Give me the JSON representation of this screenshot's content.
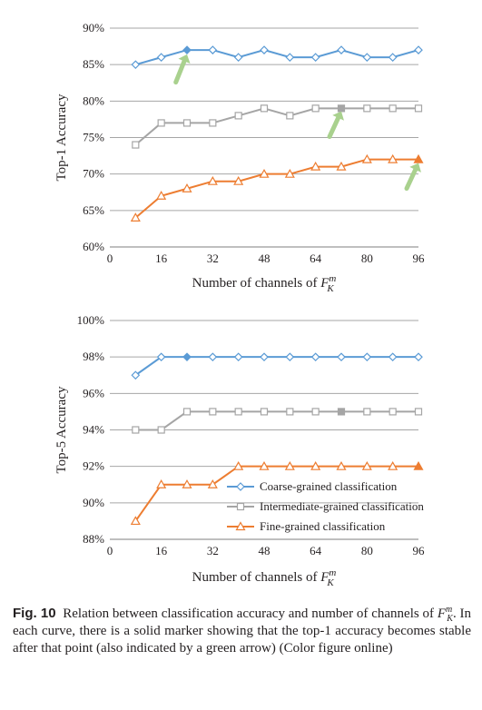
{
  "chart_data": [
    {
      "type": "line",
      "ylabel": "Top-1 Accuracy",
      "xlabel_text": "Number of channels of ",
      "xlabel_math": {
        "base": "F",
        "sub": "K",
        "sup": "m"
      },
      "x_ticks": [
        0,
        16,
        32,
        48,
        64,
        80,
        96
      ],
      "xlim": [
        0,
        96
      ],
      "y_ticks": [
        "60%",
        "65%",
        "70%",
        "75%",
        "80%",
        "85%",
        "90%"
      ],
      "ylim": [
        60,
        90
      ],
      "y_step": 5,
      "grid": true,
      "legend": null,
      "x": [
        8,
        16,
        24,
        32,
        40,
        48,
        56,
        64,
        72,
        80,
        88,
        96
      ],
      "series": [
        {
          "name": "Coarse-grained classification",
          "marker": "diamond",
          "color": "#5b9bd5",
          "values": [
            85,
            86,
            87,
            87,
            86,
            87,
            86,
            86,
            87,
            86,
            86,
            87
          ],
          "solid_index": 2
        },
        {
          "name": "Intermediate-grained classification",
          "marker": "square",
          "color": "#a5a5a5",
          "values": [
            74,
            77,
            77,
            77,
            78,
            79,
            78,
            79,
            79,
            79,
            79,
            79
          ],
          "solid_index": 8
        },
        {
          "name": "Fine-grained classification",
          "marker": "triangle",
          "color": "#ed7d31",
          "values": [
            64,
            67,
            68,
            69,
            69,
            70,
            70,
            71,
            71,
            72,
            72,
            72
          ],
          "solid_index": 11
        }
      ],
      "annotations": [
        {
          "kind": "green-arrow",
          "color": "#a9d18e",
          "x": 22,
          "y": 84.2,
          "target_x": 24,
          "target_y": 86.4
        },
        {
          "kind": "green-arrow",
          "color": "#a9d18e",
          "x": 70,
          "y": 76.7,
          "target_x": 72,
          "target_y": 78.6
        },
        {
          "kind": "green-arrow",
          "color": "#a9d18e",
          "x": 94,
          "y": 69.6,
          "target_x": 96,
          "target_y": 71.5
        }
      ]
    },
    {
      "type": "line",
      "ylabel": "Top-5 Accuracy",
      "xlabel_text": "Number of channels of ",
      "xlabel_math": {
        "base": "F",
        "sub": "K",
        "sup": "m"
      },
      "x_ticks": [
        0,
        16,
        32,
        48,
        64,
        80,
        96
      ],
      "xlim": [
        0,
        96
      ],
      "y_ticks": [
        "88%",
        "90%",
        "92%",
        "94%",
        "96%",
        "98%",
        "100%"
      ],
      "ylim": [
        88,
        100
      ],
      "y_step": 2,
      "grid": true,
      "legend": "bottom-right",
      "x": [
        8,
        16,
        24,
        32,
        40,
        48,
        56,
        64,
        72,
        80,
        88,
        96
      ],
      "series": [
        {
          "name": "Coarse-grained classification",
          "marker": "diamond",
          "color": "#5b9bd5",
          "values": [
            97,
            98,
            98,
            98,
            98,
            98,
            98,
            98,
            98,
            98,
            98,
            98
          ],
          "solid_index": 2
        },
        {
          "name": "Intermediate-grained classification",
          "marker": "square",
          "color": "#a5a5a5",
          "values": [
            94,
            94,
            95,
            95,
            95,
            95,
            95,
            95,
            95,
            95,
            95,
            95
          ],
          "solid_index": 8
        },
        {
          "name": "Fine-grained classification",
          "marker": "triangle",
          "color": "#ed7d31",
          "values": [
            89,
            91,
            91,
            91,
            92,
            92,
            92,
            92,
            92,
            92,
            92,
            92
          ],
          "solid_index": 11
        }
      ]
    }
  ],
  "caption": {
    "label": "Fig. 10",
    "text_before": "Relation between classification accuracy and number of channels of ",
    "math_base": "F",
    "math_sub": "K",
    "math_sup": "m",
    "text_after": ". In each curve, there is a solid marker showing that the top-1 accuracy becomes stable after that point (also indicated by a green arrow) (Color figure online)"
  }
}
